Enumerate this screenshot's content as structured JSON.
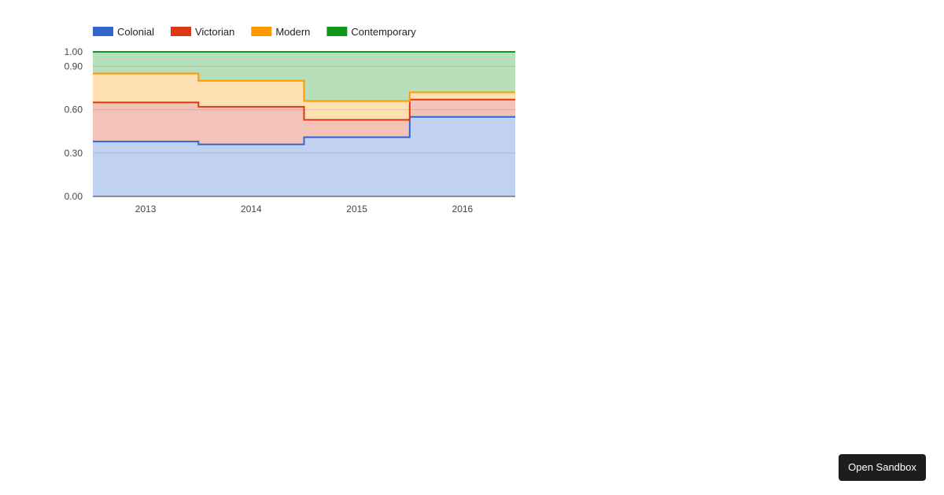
{
  "chart_data": {
    "type": "area",
    "stacked": "percent",
    "step": true,
    "categories": [
      "2013",
      "2014",
      "2015",
      "2016"
    ],
    "series": [
      {
        "name": "Colonial",
        "color": "#3366cc",
        "values": [
          0.38,
          0.36,
          0.41,
          0.55
        ]
      },
      {
        "name": "Victorian",
        "color": "#dc3912",
        "values": [
          0.27,
          0.26,
          0.12,
          0.12
        ]
      },
      {
        "name": "Modern",
        "color": "#ff9900",
        "values": [
          0.2,
          0.18,
          0.13,
          0.05
        ]
      },
      {
        "name": "Contemporary",
        "color": "#109618",
        "values": [
          0.15,
          0.2,
          0.34,
          0.28
        ]
      }
    ],
    "ylim": [
      0,
      1
    ],
    "yticks": [
      "0.00",
      "0.30",
      "0.60",
      "0.90",
      "1.00"
    ],
    "grid": true,
    "legend": "top"
  },
  "sandbox": {
    "label": "Open Sandbox"
  }
}
